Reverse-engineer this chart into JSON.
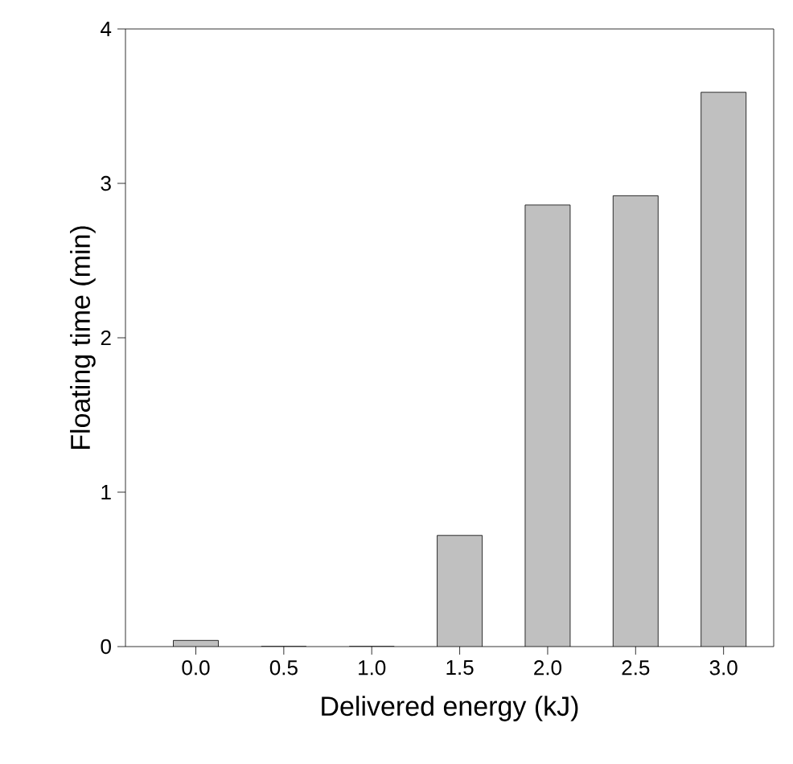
{
  "chart_data": {
    "type": "bar",
    "xlabel": "Delivered energy (kJ)",
    "ylabel": "Floating time (min)",
    "categories": [
      "0.0",
      "0.5",
      "1.0",
      "1.5",
      "2.0",
      "2.5",
      "3.0"
    ],
    "values": [
      0.04,
      0,
      0,
      0.72,
      2.86,
      2.92,
      3.59
    ],
    "color": "#c0c0c0",
    "ylim": [
      0,
      4
    ],
    "yticks": [
      0,
      1,
      2,
      3,
      4
    ],
    "grid": false
  }
}
